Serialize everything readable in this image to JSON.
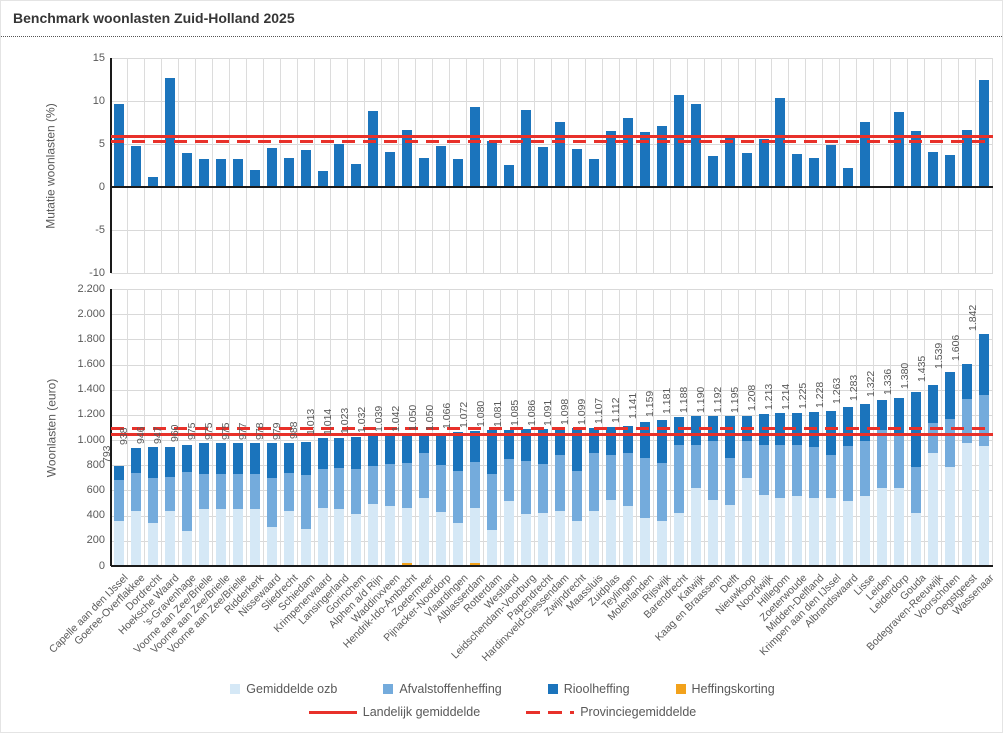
{
  "title": "Benchmark woonlasten Zuid-Holland 2025",
  "colors": {
    "bar_blue": "#1b74bc",
    "ozb_light_blue": "#d5e8f6",
    "afval_medium_blue": "#74abdc",
    "riool_dark_blue": "#1b74bc",
    "korting_orange": "#f2a21c",
    "reference_red": "#e8312a",
    "gridline": "#dcdcdc",
    "axis_text": "#595959"
  },
  "chart_data": [
    {
      "type": "bar",
      "title": "",
      "ylabel": "Mutatie woonlasten  (%)",
      "xlabel": "",
      "ylim": [
        -10,
        15
      ],
      "ytick_labels": [
        "15",
        "10",
        "5",
        "0",
        "-5",
        "-10"
      ],
      "ytick_values": [
        15,
        10,
        5,
        0,
        -5,
        -10
      ],
      "grid": true,
      "reference_lines": [
        {
          "name": "Landelijk gemiddelde",
          "style": "solid",
          "value": 5.9
        },
        {
          "name": "Provinciegemiddelde",
          "style": "dashed",
          "value": 5.3
        }
      ],
      "categories": [
        "Capelle aan den IJssel",
        "Goeree-Overflakkee",
        "Dordrecht",
        "Hoeksche Waard",
        "'s-Gravenhage",
        "Voorne aan Zee/Brielle",
        "Voorne aan Zee/Brielle",
        "Voorne aan Zee/Brielle",
        "Ridderkerk",
        "Nissewaard",
        "Sliedrecht",
        "Schiedam",
        "Krimpenerwaard",
        "Lansingerland",
        "Gorinchem",
        "Alphen a/d Rijn",
        "Waddinxveen",
        "Hendrik-Ido-Ambacht",
        "Zoetermeer",
        "Pijnacker-Nootdorp",
        "Vlaardingen",
        "Alblasserdam",
        "Rotterdam",
        "Westland",
        "Leidschendam-Voorburg",
        "Papendrecht",
        "Hardinxveld-Giessendam",
        "Zwijndrecht",
        "Maassluis",
        "Zuidplas",
        "Teylingen",
        "Molenlanden",
        "Rijswijk",
        "Barendrecht",
        "Katwijk",
        "Kaag en Braassem",
        "Delft",
        "Nieuwkoop",
        "Noordwijk",
        "Hillegom",
        "Zoeterwoude",
        "Midden-Delfland",
        "Krimpen aan den IJssel",
        "Albrandswaard",
        "Lisse",
        "Leiden",
        "Leiderdorp",
        "Gouda",
        "Bodegraven-Reeuwijk",
        "Voorschoten",
        "Oegstgeest",
        "Wassenaar"
      ],
      "values": [
        9.6,
        4.8,
        1.2,
        12.7,
        4.0,
        3.2,
        3.2,
        3.2,
        2.0,
        4.5,
        3.4,
        4.3,
        1.9,
        5.0,
        2.7,
        8.8,
        4.1,
        6.6,
        3.4,
        4.8,
        3.3,
        9.3,
        5.4,
        2.6,
        9.0,
        4.6,
        7.6,
        4.4,
        3.2,
        6.5,
        8.0,
        6.4,
        7.1,
        10.7,
        9.6,
        3.6,
        5.8,
        4.0,
        5.6,
        10.4,
        3.8,
        3.4,
        4.9,
        2.2,
        7.6,
        null,
        8.7,
        6.5,
        4.1,
        3.7,
        6.6,
        12.4
      ]
    },
    {
      "type": "stacked-bar",
      "title": "",
      "ylabel": "Woonlasten  (euro)",
      "xlabel": "",
      "ylim": [
        0,
        2200
      ],
      "ytick_labels": [
        "2.200",
        "2.000",
        "1.800",
        "1.600",
        "1.400",
        "1.200",
        "1.000",
        "800",
        "600",
        "400",
        "200",
        "0"
      ],
      "ytick_values": [
        2200,
        2000,
        1800,
        1600,
        1400,
        1200,
        1000,
        800,
        600,
        400,
        200,
        0
      ],
      "grid": true,
      "reference_lines": [
        {
          "name": "Landelijk gemiddelde",
          "style": "solid",
          "value": 1050
        },
        {
          "name": "Provinciegemiddelde",
          "style": "dashed",
          "value": 1095
        }
      ],
      "categories": [
        "Capelle aan den IJssel",
        "Goeree-Overflakkee",
        "Dordrecht",
        "Hoeksche Waard",
        "'s-Gravenhage",
        "Voorne aan Zee/Brielle",
        "Voorne aan Zee/Brielle",
        "Voorne aan Zee/Brielle",
        "Ridderkerk",
        "Nissewaard",
        "Sliedrecht",
        "Schiedam",
        "Krimpenerwaard",
        "Lansingerland",
        "Gorinchem",
        "Alphen a/d Rijn",
        "Waddinxveen",
        "Hendrik-Ido-Ambacht",
        "Zoetermeer",
        "Pijnacker-Nootdorp",
        "Vlaardingen",
        "Alblasserdam",
        "Rotterdam",
        "Westland",
        "Leidschendam-Voorburg",
        "Papendrecht",
        "Hardinxveld-Giessendam",
        "Zwijndrecht",
        "Maassluis",
        "Zuidplas",
        "Teylingen",
        "Molenlanden",
        "Rijswijk",
        "Barendrecht",
        "Katwijk",
        "Kaag en Braassem",
        "Delft",
        "Nieuwkoop",
        "Noordwijk",
        "Hillegom",
        "Zoeterwoude",
        "Midden-Delfland",
        "Krimpen aan den IJssel",
        "Albrandswaard",
        "Lisse",
        "Leiden",
        "Leiderdorp",
        "Gouda",
        "Bodegraven-Reeuwijk",
        "Voorschoten",
        "Oegstgeest",
        "Wassenaar"
      ],
      "totals": [
        793,
        938,
        946,
        947,
        960,
        975,
        975,
        975,
        977,
        978,
        979,
        988,
        1013,
        1014,
        1023,
        1032,
        1039,
        1042,
        1050,
        1050,
        1066,
        1072,
        1080,
        1081,
        1085,
        1086,
        1091,
        1098,
        1099,
        1107,
        1112,
        1141,
        1159,
        1181,
        1188,
        1190,
        1192,
        1195,
        1208,
        1213,
        1214,
        1225,
        1228,
        1263,
        1283,
        1322,
        1336,
        1380,
        1435,
        1539,
        1606,
        1842
      ],
      "bar_labels": [
        "793",
        "938",
        "946",
        "947",
        "960",
        "975",
        "975",
        "975",
        "977",
        "978",
        "979",
        "988",
        "1.013",
        "1.014",
        "1.023",
        "1.032",
        "1.039",
        "1.042",
        "1.050",
        "1.050",
        "1.066",
        "1.072",
        "1.080",
        "1.081",
        "1.085",
        "1.086",
        "1.091",
        "1.098",
        "1.099",
        "1.107",
        "1.112",
        "1.141",
        "1.159",
        "1.181",
        "1.188",
        "1.190",
        "1.192",
        "1.195",
        "1.208",
        "1.213",
        "1.214",
        "1.225",
        "1.228",
        "1.263",
        "1.283",
        "1.322",
        "1.336",
        "1.380",
        "1.435",
        "1.539",
        "1.606",
        "1.842"
      ],
      "series": [
        {
          "name": "Gemiddelde ozb",
          "values": [
            357,
            437,
            342,
            437,
            278,
            452,
            452,
            452,
            452,
            310,
            437,
            294,
            460,
            452,
            413,
            492,
            476,
            460,
            540,
            428,
            341,
            460,
            285,
            519,
            414,
            420,
            434,
            355,
            434,
            527,
            479,
            381,
            355,
            420,
            619,
            527,
            487,
            700,
            563,
            540,
            560,
            540,
            540,
            520,
            560,
            620,
            620,
            420,
            900,
            790,
            977,
            950
          ]
        },
        {
          "name": "Afvalstoffenheffing",
          "values": [
            326,
            302,
            357,
            270,
            468,
            279,
            279,
            279,
            279,
            389,
            302,
            429,
            310,
            326,
            357,
            302,
            334,
            358,
            357,
            373,
            412,
            366,
            445,
            334,
            421,
            390,
            450,
            397,
            463,
            357,
            418,
            477,
            463,
            543,
            344,
            463,
            373,
            295,
            395,
            423,
            404,
            405,
            344,
            433,
            433,
            460,
            416,
            370,
            235,
            380,
            350,
            412
          ]
        },
        {
          "name": "Rioolheffing",
          "values": [
            110,
            199,
            247,
            240,
            214,
            244,
            244,
            244,
            246,
            279,
            240,
            265,
            243,
            236,
            253,
            238,
            229,
            224,
            153,
            249,
            313,
            246,
            350,
            228,
            250,
            276,
            207,
            346,
            202,
            223,
            215,
            283,
            341,
            218,
            225,
            200,
            332,
            200,
            250,
            250,
            250,
            280,
            344,
            310,
            290,
            242,
            300,
            590,
            300,
            369,
            279,
            480
          ]
        },
        {
          "name": "Heffingskorting",
          "values": [
            0,
            0,
            0,
            0,
            0,
            0,
            0,
            0,
            0,
            0,
            0,
            0,
            0,
            0,
            0,
            0,
            0,
            22,
            0,
            0,
            0,
            25,
            0,
            0,
            0,
            0,
            0,
            0,
            0,
            0,
            0,
            0,
            0,
            0,
            0,
            0,
            0,
            0,
            0,
            0,
            0,
            0,
            0,
            0,
            0,
            0,
            0,
            0,
            0,
            0,
            0,
            0
          ]
        }
      ]
    }
  ],
  "legend": {
    "items": [
      {
        "label": "Gemiddelde ozb",
        "color": "#d5e8f6"
      },
      {
        "label": "Afvalstoffenheffing",
        "color": "#74abdc"
      },
      {
        "label": "Rioolheffing",
        "color": "#1b74bc"
      },
      {
        "label": "Heffingskorting",
        "color": "#f2a21c"
      }
    ],
    "lines": [
      {
        "label": "Landelijk gemiddelde",
        "style": "solid",
        "color": "#e8312a"
      },
      {
        "label": "Provinciegemiddelde",
        "style": "dashed",
        "color": "#e8312a"
      }
    ]
  }
}
